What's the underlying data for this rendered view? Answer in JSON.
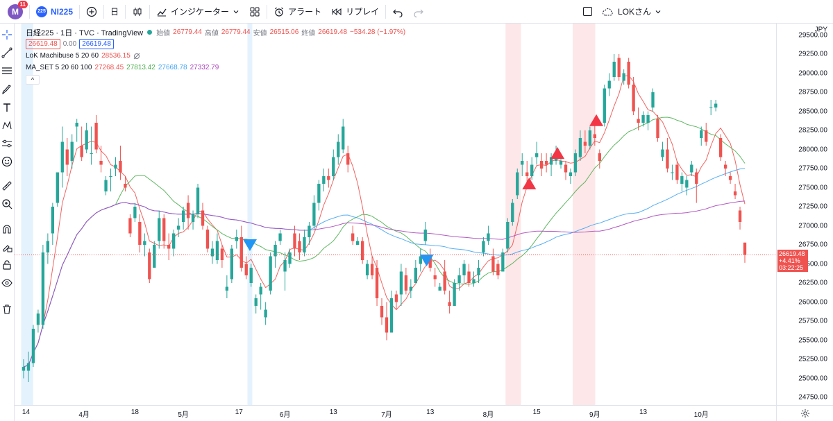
{
  "toolbar": {
    "avatar_letter": "M",
    "notification_count": "11",
    "symbol_badge": "225",
    "symbol": "NI225",
    "interval": "日",
    "indicators_label": "インジケーター",
    "alert_label": "アラート",
    "replay_label": "リプレイ",
    "layout_name": "LOKさん"
  },
  "legend": {
    "title": "日経225 · 1日 · TVC · TradingView",
    "open_label": "始値",
    "open": "26779.44",
    "high_label": "高値",
    "high": "26779.44",
    "low_label": "安値",
    "low": "26515.06",
    "close_label": "終値",
    "close": "26619.48",
    "change": "−534.28 (−1.97%)",
    "bid": "26619.48",
    "spread": "0.00",
    "ask": "26619.48",
    "indicator1_name": "LoK Machibuse 5 20 60",
    "indicator1_value": "28536.15",
    "indicator2_name": "MA_SET 5 20 60 100",
    "ma5": "27268.45",
    "ma20": "27813.42",
    "ma60": "27668.78",
    "ma100": "27332.79",
    "collapse": "^"
  },
  "price_axis": {
    "currency": "JPY",
    "labels": [
      "29500.00",
      "29250.00",
      "29000.00",
      "28750.00",
      "28500.00",
      "28250.00",
      "28000.00",
      "27750.00",
      "27500.00",
      "27250.00",
      "27000.00",
      "26750.00",
      "26500.00",
      "26250.00",
      "26000.00",
      "25750.00",
      "25500.00",
      "25250.00",
      "25000.00",
      "24750.00"
    ],
    "current_price": "26619.48",
    "current_change": "+4.41%",
    "countdown": "03:22:25"
  },
  "time_axis": {
    "labels": [
      "14",
      "4月",
      "18",
      "5月",
      "17",
      "6月",
      "13",
      "7月",
      "13",
      "8月",
      "15",
      "9月",
      "13",
      "10月"
    ]
  },
  "colors": {
    "up": "#26a69a",
    "down": "#ef5350",
    "ma5": "#ef5350",
    "ma20": "#4caf50",
    "ma60": "#42a5f5",
    "ma100": "#ab47bc",
    "accent": "#2962ff"
  },
  "chart_data": {
    "type": "candlestick",
    "y_range": [
      24650,
      29650
    ],
    "x_range": [
      "2022-03-14",
      "2022-10-04"
    ],
    "moving_averages": [
      "MA5",
      "MA20",
      "MA60",
      "MA100"
    ],
    "last_close": 26619.48,
    "highlight_zones": [
      {
        "from": "2022-03-14",
        "to": "2022-03-16",
        "color": "blue"
      },
      {
        "from": "2022-05-17",
        "to": "2022-05-17",
        "color": "blue"
      },
      {
        "from": "2022-07-29",
        "to": "2022-08-01",
        "color": "red"
      },
      {
        "from": "2022-08-17",
        "to": "2022-08-22",
        "color": "red"
      }
    ],
    "signals": [
      {
        "date": "2022-05-17",
        "type": "down-triangle",
        "color": "blue",
        "price": 26750
      },
      {
        "date": "2022-07-06",
        "type": "down-triangle",
        "color": "blue",
        "price": 26550
      },
      {
        "date": "2022-08-04",
        "type": "up-triangle",
        "color": "red",
        "price": 27550
      },
      {
        "date": "2022-08-12",
        "type": "up-triangle",
        "color": "red",
        "price": 27950
      },
      {
        "date": "2022-08-23",
        "type": "up-triangle",
        "color": "red",
        "price": 28380
      }
    ],
    "ohlc": [
      [
        25100,
        25250,
        25000,
        25150
      ],
      [
        25100,
        25350,
        24950,
        25200
      ],
      [
        25200,
        25700,
        25150,
        25650
      ],
      [
        25700,
        25900,
        25600,
        25850
      ],
      [
        25700,
        26750,
        25650,
        26650
      ],
      [
        26650,
        26900,
        26500,
        26800
      ],
      [
        26900,
        27300,
        26750,
        27250
      ],
      [
        27300,
        27700,
        27250,
        27700
      ],
      [
        27700,
        28300,
        27500,
        28100
      ],
      [
        28000,
        28150,
        27650,
        27800
      ],
      [
        27850,
        28200,
        27750,
        28100
      ],
      [
        28300,
        28400,
        28100,
        28350
      ],
      [
        28050,
        28300,
        27850,
        27900
      ],
      [
        28000,
        28350,
        27950,
        28250
      ],
      [
        27950,
        28300,
        27800,
        27950
      ],
      [
        28350,
        28450,
        27950,
        28000
      ],
      [
        27850,
        28050,
        27700,
        27800
      ],
      [
        27450,
        27650,
        27400,
        27600
      ],
      [
        27650,
        27750,
        27450,
        27650
      ],
      [
        27750,
        27900,
        27650,
        27800
      ],
      [
        27850,
        28050,
        27600,
        27700
      ],
      [
        27550,
        27650,
        27450,
        27500
      ],
      [
        27100,
        27150,
        26850,
        26900
      ],
      [
        27100,
        27300,
        27050,
        27250
      ],
      [
        27050,
        27150,
        26650,
        26750
      ],
      [
        26750,
        26900,
        26600,
        26800
      ],
      [
        26650,
        26700,
        26250,
        26300
      ],
      [
        26450,
        26800,
        26450,
        26750
      ],
      [
        26800,
        27200,
        26700,
        27100
      ],
      [
        27100,
        27150,
        26700,
        26800
      ],
      [
        26750,
        26900,
        26550,
        26700
      ],
      [
        26700,
        26950,
        26600,
        26900
      ],
      [
        26950,
        27100,
        26850,
        27000
      ],
      [
        27050,
        27250,
        26950,
        27200
      ],
      [
        27300,
        27400,
        26950,
        27100
      ],
      [
        27050,
        27200,
        26950,
        27150
      ],
      [
        27150,
        27550,
        27100,
        27500
      ],
      [
        27200,
        27300,
        26950,
        27000
      ],
      [
        26950,
        27000,
        26650,
        26700
      ],
      [
        26600,
        26800,
        26500,
        26700
      ],
      [
        26550,
        26900,
        26500,
        26800
      ],
      [
        26700,
        26750,
        26450,
        26550
      ],
      [
        26150,
        26350,
        26050,
        26200
      ],
      [
        26300,
        26750,
        26250,
        26700
      ],
      [
        26800,
        26950,
        26700,
        26850
      ],
      [
        26850,
        27000,
        26400,
        26450
      ],
      [
        26500,
        26600,
        26300,
        26350
      ],
      [
        26250,
        26500,
        26200,
        26450
      ],
      [
        25950,
        26100,
        25850,
        26050
      ],
      [
        26100,
        26250,
        25900,
        26200
      ],
      [
        25800,
        26000,
        25700,
        25900
      ],
      [
        26150,
        26650,
        26100,
        26600
      ],
      [
        26600,
        26800,
        26450,
        26750
      ],
      [
        26800,
        26950,
        26750,
        26900
      ],
      [
        26400,
        26650,
        26150,
        26550
      ],
      [
        26500,
        26700,
        26450,
        26650
      ],
      [
        26900,
        27000,
        26600,
        26700
      ],
      [
        26800,
        26900,
        26550,
        26650
      ],
      [
        26650,
        26950,
        26600,
        26850
      ],
      [
        26850,
        27050,
        26750,
        27000
      ],
      [
        27000,
        27400,
        26950,
        27300
      ],
      [
        27300,
        27600,
        27200,
        27550
      ],
      [
        27550,
        27750,
        27450,
        27650
      ],
      [
        27650,
        27750,
        27500,
        27600
      ],
      [
        27650,
        28000,
        27600,
        27900
      ],
      [
        27900,
        28200,
        27800,
        28100
      ],
      [
        28000,
        28400,
        27950,
        28300
      ],
      [
        27950,
        28050,
        27700,
        27800
      ],
      [
        26900,
        27000,
        26750,
        26800
      ],
      [
        26750,
        26850,
        26750,
        26800
      ],
      [
        26800,
        26850,
        26500,
        26550
      ],
      [
        26350,
        26550,
        26300,
        26500
      ],
      [
        26500,
        26600,
        26300,
        26350
      ],
      [
        26450,
        26550,
        25950,
        26050
      ],
      [
        25950,
        26050,
        25700,
        25800
      ],
      [
        25800,
        26000,
        25500,
        25600
      ],
      [
        25600,
        26150,
        25600,
        26050
      ],
      [
        26100,
        26150,
        25900,
        26000
      ],
      [
        26100,
        26500,
        25950,
        26400
      ],
      [
        26350,
        26450,
        26100,
        26150
      ],
      [
        26150,
        26300,
        26050,
        26200
      ],
      [
        26250,
        26550,
        26250,
        26450
      ],
      [
        26500,
        26700,
        26400,
        26600
      ],
      [
        26800,
        27050,
        26750,
        26950
      ],
      [
        26600,
        26700,
        26400,
        26450
      ],
      [
        26350,
        26450,
        26200,
        26300
      ],
      [
        26150,
        26250,
        26150,
        26200
      ],
      [
        26400,
        26550,
        26100,
        26150
      ],
      [
        26000,
        26150,
        25850,
        25950
      ],
      [
        25950,
        26300,
        25950,
        26250
      ],
      [
        26250,
        26450,
        26150,
        26350
      ],
      [
        26350,
        26550,
        26250,
        26500
      ],
      [
        26400,
        26500,
        26200,
        26250
      ],
      [
        26250,
        26400,
        26200,
        26300
      ],
      [
        26350,
        26550,
        26250,
        26450
      ],
      [
        26650,
        26850,
        26600,
        26800
      ],
      [
        26800,
        27000,
        26750,
        26900
      ],
      [
        26600,
        26700,
        26350,
        26400
      ],
      [
        26500,
        26550,
        26300,
        26350
      ],
      [
        26400,
        26700,
        26400,
        26650
      ],
      [
        26700,
        27100,
        26650,
        27050
      ],
      [
        27050,
        27350,
        27000,
        27300
      ],
      [
        27400,
        27750,
        27350,
        27700
      ],
      [
        27800,
        27950,
        27650,
        27850
      ],
      [
        27700,
        27850,
        27550,
        27650
      ],
      [
        27650,
        27900,
        27600,
        27800
      ],
      [
        27900,
        28100,
        27800,
        27950
      ],
      [
        27850,
        27950,
        27650,
        27750
      ],
      [
        27850,
        27950,
        27700,
        27800
      ],
      [
        27800,
        27950,
        27650,
        27900
      ],
      [
        27850,
        28050,
        27800,
        27950
      ],
      [
        27800,
        27950,
        27750,
        27850
      ],
      [
        27800,
        27850,
        27600,
        27700
      ],
      [
        27650,
        27750,
        27550,
        27700
      ],
      [
        27700,
        28000,
        27650,
        27950
      ],
      [
        27900,
        28250,
        27850,
        28150
      ],
      [
        28100,
        28250,
        27950,
        28050
      ],
      [
        28050,
        28300,
        28000,
        28250
      ],
      [
        28200,
        28400,
        28050,
        28150
      ],
      [
        27950,
        28000,
        27750,
        27850
      ],
      [
        28350,
        28850,
        28300,
        28800
      ],
      [
        28800,
        29000,
        28700,
        28900
      ],
      [
        28950,
        29250,
        28900,
        29150
      ],
      [
        29200,
        29250,
        28900,
        28950
      ],
      [
        28900,
        29050,
        28850,
        29000
      ],
      [
        29150,
        29200,
        28800,
        28850
      ],
      [
        28850,
        28950,
        28450,
        28500
      ],
      [
        28400,
        28550,
        28250,
        28350
      ],
      [
        28350,
        28500,
        28300,
        28450
      ],
      [
        28350,
        28500,
        28250,
        28450
      ],
      [
        28550,
        28800,
        28500,
        28750
      ],
      [
        28400,
        28450,
        28100,
        28150
      ],
      [
        27900,
        28100,
        27850,
        28000
      ],
      [
        28000,
        28150,
        27700,
        27750
      ],
      [
        27700,
        27800,
        27600,
        27700
      ],
      [
        27800,
        27850,
        27550,
        27600
      ],
      [
        27550,
        27700,
        27450,
        27650
      ],
      [
        27500,
        27650,
        27400,
        27600
      ],
      [
        27700,
        27850,
        27650,
        27800
      ],
      [
        27700,
        27750,
        27300,
        27550
      ],
      [
        28150,
        28300,
        28050,
        28250
      ],
      [
        28250,
        28350,
        28050,
        28100
      ],
      [
        28550,
        28650,
        28450,
        28550
      ],
      [
        28550,
        28650,
        28500,
        28600
      ],
      [
        28150,
        28200,
        27850,
        27900
      ],
      [
        27800,
        27850,
        27650,
        27750
      ],
      [
        27650,
        27700,
        27550,
        27600
      ],
      [
        27450,
        27550,
        27350,
        27400
      ],
      [
        27200,
        27250,
        26950,
        27050
      ],
      [
        26779.44,
        26779.44,
        26515.06,
        26619.48
      ]
    ]
  }
}
